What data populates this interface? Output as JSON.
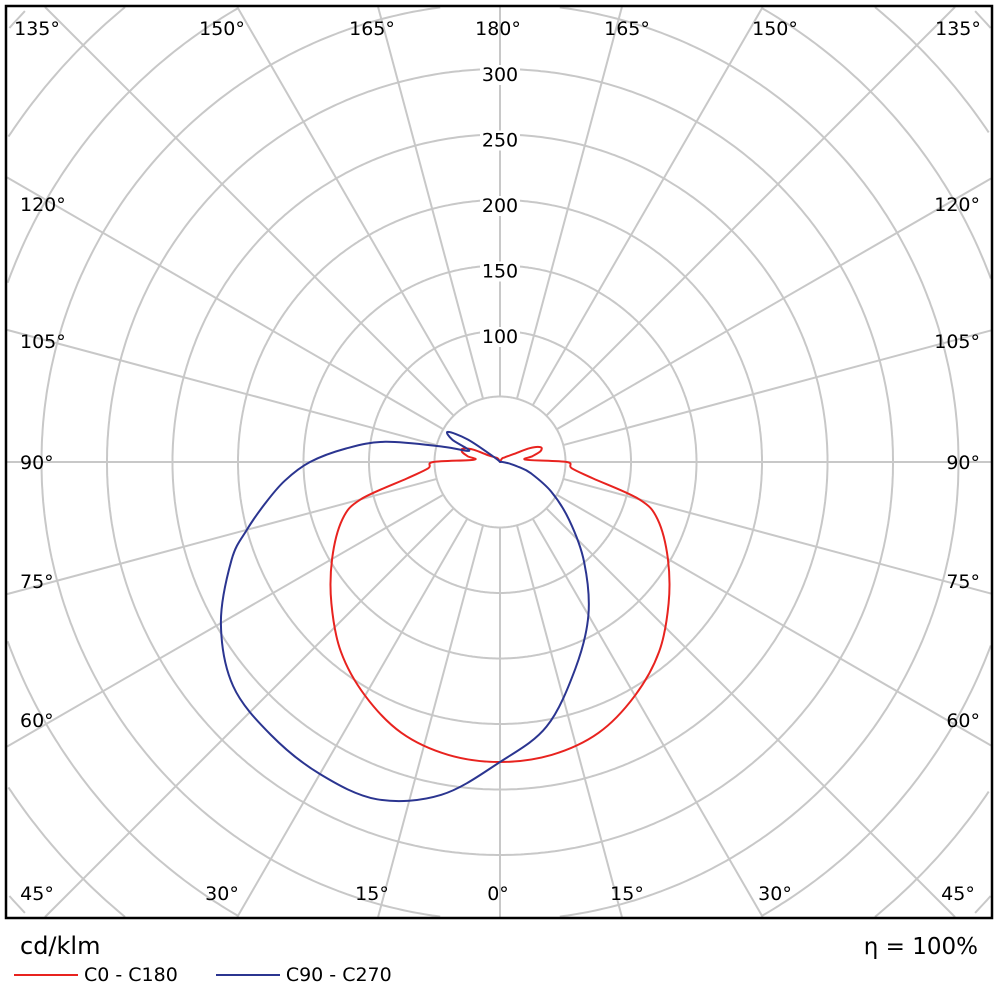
{
  "chart_data": {
    "type": "polar",
    "unit_label": "cd/klm",
    "efficiency_label": "η = 100%",
    "radial_ticks": [
      100,
      150,
      200,
      250,
      300
    ],
    "ring_step": 50,
    "angle_step_deg": 15,
    "angle_labels": {
      "top": [
        "135°",
        "150°",
        "165°",
        "180°",
        "165°",
        "150°",
        "135°"
      ],
      "left": [
        "120°",
        "105°",
        "90°",
        "75°",
        "60°"
      ],
      "right": [
        "120°",
        "105°",
        "90°",
        "75°",
        "60°"
      ],
      "bottom": [
        "45°",
        "30°",
        "15°",
        "0°",
        "15°",
        "30°",
        "45°"
      ]
    },
    "grid": true,
    "series": [
      {
        "name": "C0 - C180",
        "color": "#e8231f",
        "gamma": [
          0,
          10,
          20,
          30,
          40,
          50,
          60,
          70,
          75,
          80,
          85,
          90,
          95,
          100,
          105,
          110,
          115,
          120,
          135,
          150,
          180
        ],
        "right_values": [
          229,
          227,
          220,
          206,
          189,
          168,
          148,
          128,
          110,
          72,
          55,
          51,
          20,
          25,
          32,
          33,
          25,
          12,
          5,
          3,
          0
        ],
        "left_values": [
          229,
          227,
          220,
          206,
          189,
          168,
          148,
          128,
          110,
          72,
          55,
          51,
          20,
          25,
          30,
          30,
          22,
          10,
          5,
          3,
          0
        ]
      },
      {
        "name": "C90 - C270",
        "color": "#2b3590",
        "gamma": [
          0,
          10,
          20,
          30,
          40,
          50,
          60,
          70,
          75,
          80,
          85,
          90,
          95,
          100,
          105,
          110,
          115,
          120,
          125,
          130,
          180
        ],
        "right_values": [
          229,
          205,
          168,
          135,
          100,
          69,
          45,
          25,
          15,
          8,
          4,
          2,
          1,
          0,
          0,
          0,
          0,
          0,
          0,
          0,
          0
        ],
        "left_values": [
          229,
          258,
          274,
          275,
          272,
          266,
          246,
          218,
          200,
          182,
          165,
          145,
          118,
          89,
          45,
          25,
          40,
          46,
          30,
          5,
          0
        ]
      }
    ]
  }
}
